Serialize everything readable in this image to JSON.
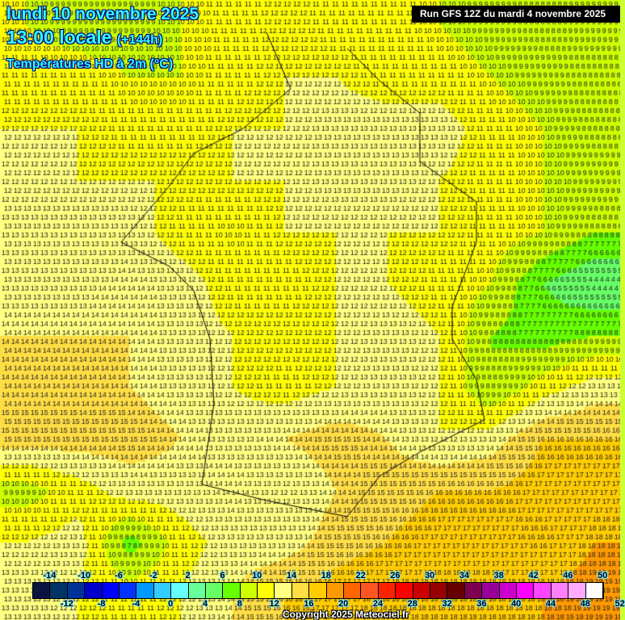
{
  "header": {
    "date": "lundi 10 novembre 2025",
    "time": "13:00 locale",
    "lead": "(+144h)",
    "parameter": "Températures HD à 2m (°C)"
  },
  "run_info": "Run GFS 12Z du mardi 4 novembre 2025",
  "copyright": "Copyright 2025 Meteociel.fr",
  "legend": {
    "top_labels": [
      "-14",
      "-10",
      "-6",
      "-2",
      "2",
      "6",
      "10",
      "14",
      "18",
      "22",
      "26",
      "30",
      "34",
      "38",
      "42",
      "46",
      "50"
    ],
    "bottom_labels": [
      "-12",
      "-8",
      "-4",
      "0",
      "4",
      "8",
      "12",
      "16",
      "20",
      "24",
      "28",
      "32",
      "36",
      "40",
      "44",
      "48",
      "52"
    ],
    "colors": [
      "#0a1440",
      "#003366",
      "#003399",
      "#0000cc",
      "#0000ff",
      "#0033ff",
      "#0099ff",
      "#33ccff",
      "#66ffff",
      "#66ff99",
      "#66ff66",
      "#66ff00",
      "#ccff00",
      "#ffff00",
      "#ffff80",
      "#ffdd44",
      "#ffcc00",
      "#ff9900",
      "#ff6600",
      "#ff5522",
      "#ff2200",
      "#ff0000",
      "#cc0000",
      "#990000",
      "#660000",
      "#800050",
      "#990099",
      "#cc00cc",
      "#ff00ff",
      "#ff44ff",
      "#ff80ff",
      "#ffaaff",
      "#ffffff"
    ],
    "min": -16,
    "step": 2
  },
  "temperature_field_c": [
    [
      10,
      9,
      9,
      10,
      11,
      12,
      11,
      11,
      10,
      9,
      8,
      9
    ],
    [
      11,
      11,
      10,
      10,
      11,
      12,
      12,
      11,
      11,
      10,
      9,
      8
    ],
    [
      12,
      12,
      11,
      11,
      12,
      12,
      13,
      13,
      13,
      11,
      10,
      8
    ],
    [
      12,
      12,
      12,
      12,
      12,
      12,
      13,
      13,
      12,
      11,
      10,
      9
    ],
    [
      13,
      13,
      13,
      11,
      10,
      12,
      12,
      12,
      12,
      11,
      10,
      8
    ],
    [
      13,
      13,
      14,
      13,
      11,
      11,
      12,
      12,
      11,
      10,
      6,
      4
    ],
    [
      14,
      14,
      14,
      13,
      12,
      12,
      12,
      13,
      12,
      8,
      7,
      8
    ],
    [
      14,
      14,
      14,
      13,
      12,
      11,
      12,
      13,
      12,
      8,
      11,
      13
    ],
    [
      15,
      15,
      15,
      14,
      13,
      14,
      15,
      14,
      12,
      13,
      16,
      16
    ],
    [
      9,
      11,
      13,
      13,
      14,
      12,
      14,
      15,
      16,
      16,
      17,
      17
    ],
    [
      12,
      13,
      7,
      11,
      13,
      13,
      15,
      16,
      17,
      17,
      16,
      18
    ],
    [
      13,
      12,
      11,
      12,
      14,
      16,
      17,
      18,
      18,
      18,
      18,
      19
    ]
  ]
}
